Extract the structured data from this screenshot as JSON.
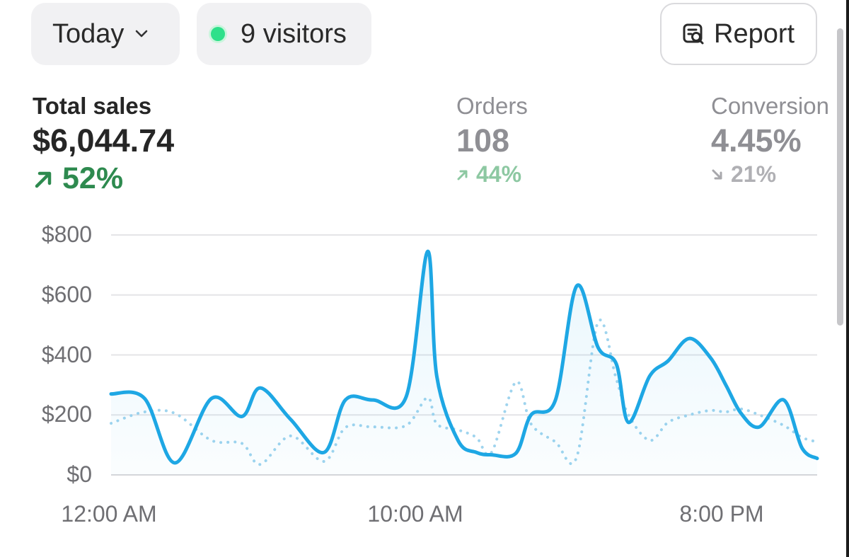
{
  "header": {
    "date_range": "Today",
    "visitors": "9 visitors",
    "report_label": "Report",
    "live_color": "#2ee08a"
  },
  "metrics": [
    {
      "label": "Total sales",
      "value": "$6,044.74",
      "change": "52%",
      "direction": "up",
      "color": "#2e8a4f"
    },
    {
      "label": "Orders",
      "value": "108",
      "change": "44%",
      "direction": "up",
      "color": "#8dc8a2"
    },
    {
      "label": "Conversion r",
      "value": "4.45%",
      "change": "21%",
      "direction": "down",
      "color": "#b0b0b4"
    }
  ],
  "chart_data": {
    "type": "line",
    "y_ticks": [
      "$800",
      "$600",
      "$400",
      "$200",
      "$0"
    ],
    "ylim": [
      0,
      800
    ],
    "x_ticks": [
      "12:00 AM",
      "10:00 AM",
      "8:00 PM"
    ],
    "x_tick_hours": [
      0,
      10,
      20
    ],
    "xlim": [
      -1.7,
      21.5
    ],
    "grid": true,
    "series": [
      {
        "style": "solid",
        "color": "#1ea7e4",
        "x": [
          -1.7,
          -0.6,
          0.4,
          1.6,
          2.6,
          3.2,
          4.2,
          5.3,
          6.0,
          6.9,
          8.0,
          8.7,
          9.0,
          9.7,
          10.3,
          10.8,
          11.6,
          12.1,
          12.9,
          13.6,
          14.3,
          14.9,
          15.3,
          16.0,
          16.6,
          17.3,
          18.0,
          18.5,
          19.0,
          19.6,
          20.4,
          21.0,
          21.5
        ],
        "y": [
          270,
          255,
          40,
          255,
          195,
          290,
          185,
          75,
          250,
          250,
          262,
          745,
          330,
          115,
          75,
          67,
          72,
          200,
          250,
          630,
          425,
          370,
          175,
          330,
          380,
          455,
          390,
          300,
          205,
          160,
          250,
          90,
          55
        ]
      },
      {
        "style": "dotted",
        "color": "#9fd4ee",
        "x": [
          -1.7,
          -0.6,
          0.4,
          1.6,
          2.6,
          3.2,
          4.2,
          5.3,
          6.0,
          6.9,
          8.0,
          8.7,
          9.0,
          9.7,
          10.3,
          10.8,
          11.6,
          12.1,
          12.9,
          13.6,
          14.3,
          14.9,
          15.3,
          16.0,
          16.6,
          17.3,
          18.0,
          18.5,
          19.0,
          19.6,
          20.4,
          21.0,
          21.5
        ],
        "y": [
          172,
          210,
          205,
          115,
          105,
          35,
          130,
          45,
          158,
          160,
          165,
          258,
          170,
          150,
          125,
          75,
          310,
          170,
          110,
          60,
          510,
          320,
          200,
          115,
          175,
          200,
          215,
          210,
          220,
          200,
          165,
          125,
          110
        ]
      }
    ]
  }
}
